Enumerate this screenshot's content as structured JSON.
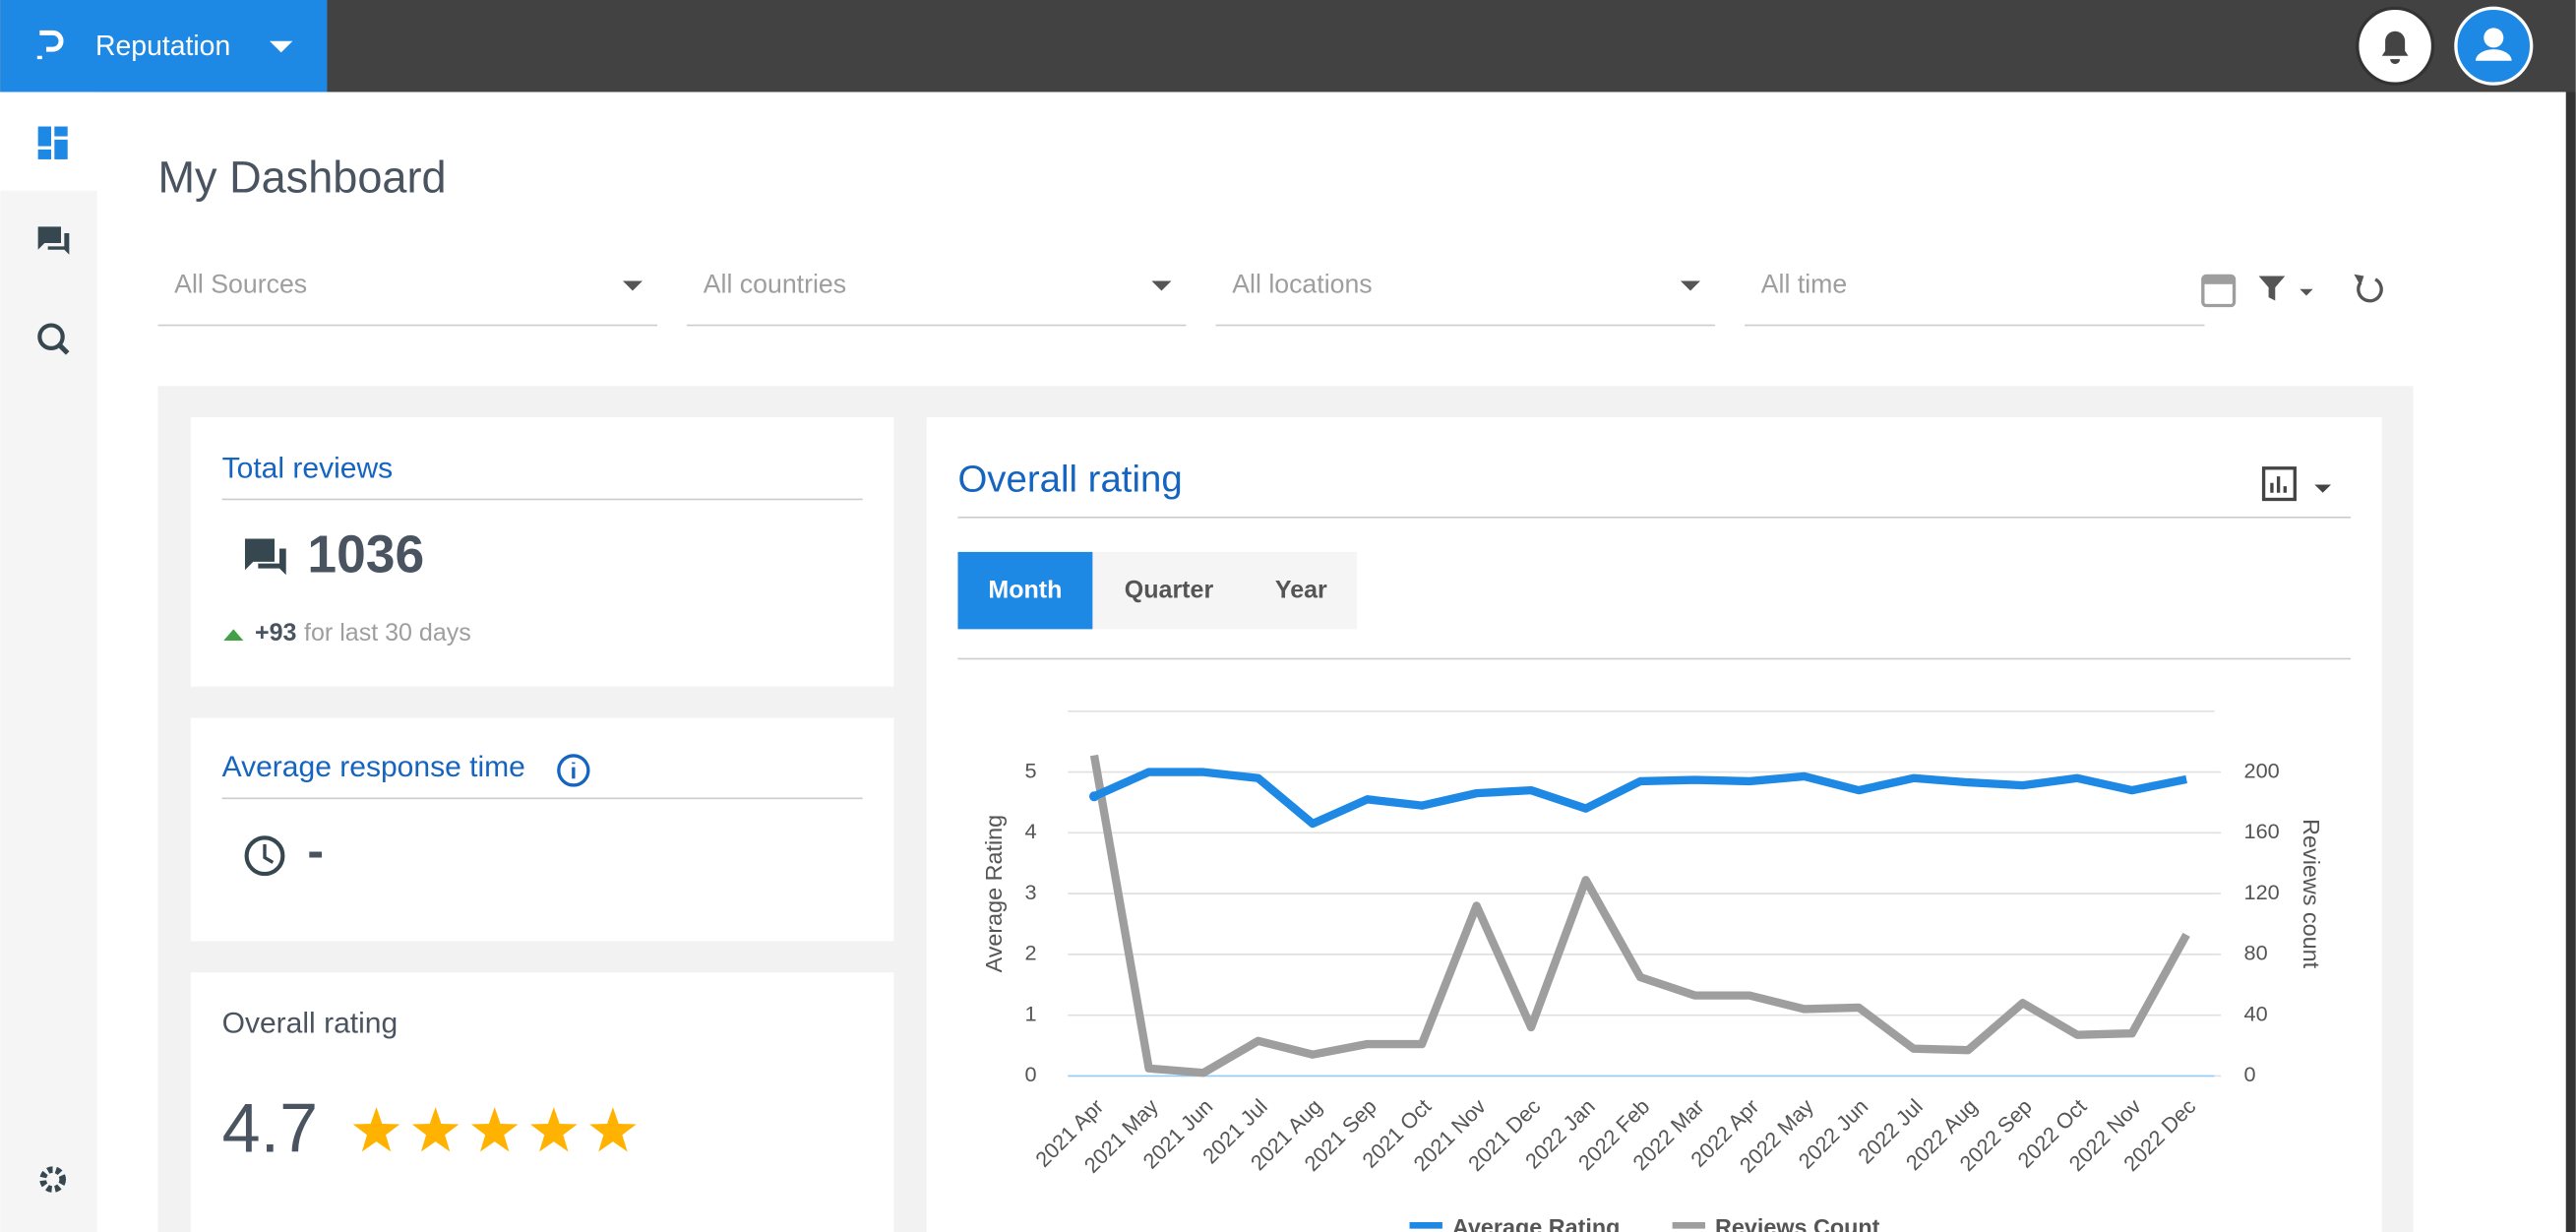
{
  "header": {
    "app_name": "Reputation"
  },
  "page_title": "My Dashboard",
  "filters": [
    "All Sources",
    "All countries",
    "All locations",
    "All time"
  ],
  "cards": {
    "total_reviews": {
      "title": "Total reviews",
      "value": 1036,
      "change": "+93",
      "change_text": "for last 30 days"
    },
    "response_time": {
      "title": "Average response time",
      "value": "-"
    },
    "overall_rating": {
      "title": "Overall rating",
      "value": 4.7
    }
  },
  "chart_panel": {
    "title": "Overall rating",
    "tabs": [
      "Month",
      "Quarter",
      "Year"
    ]
  },
  "chart_data": {
    "type": "line",
    "categories": [
      "2021 Apr",
      "2021 May",
      "2021 Jun",
      "2021 Jul",
      "2021 Aug",
      "2021 Sep",
      "2021 Oct",
      "2021 Nov",
      "2021 Dec",
      "2022 Jan",
      "2022 Feb",
      "2022 Mar",
      "2022 Apr",
      "2022 May",
      "2022 Jun",
      "2022 Jul",
      "2022 Aug",
      "2022 Sep",
      "2022 Oct",
      "2022 Nov",
      "2022 Dec"
    ],
    "series": [
      {
        "name": "Average Rating",
        "color": "#1e88e5",
        "values": [
          4.6,
          5.0,
          5.0,
          4.9,
          4.15,
          4.55,
          4.45,
          4.65,
          4.7,
          4.4,
          4.85,
          4.87,
          4.85,
          4.93,
          4.7,
          4.9,
          4.83,
          4.78,
          4.9,
          4.7,
          4.88
        ]
      },
      {
        "name": "Reviews Count",
        "color": "#9e9e9e",
        "axis": "y2",
        "values": [
          211,
          5,
          2,
          23,
          14,
          21,
          21,
          112,
          32,
          129,
          65,
          53,
          53,
          44,
          45,
          18,
          17,
          48,
          27,
          28,
          93
        ]
      }
    ],
    "ylabel": "Average Rating",
    "y2label": "Reviews count",
    "ylim": [
      0,
      6
    ],
    "yticks": [
      0,
      1,
      2,
      3,
      4,
      5
    ],
    "y2lim": [
      0,
      240
    ],
    "y2ticks": [
      0,
      40,
      80,
      120,
      160,
      200
    ],
    "grid": true
  }
}
